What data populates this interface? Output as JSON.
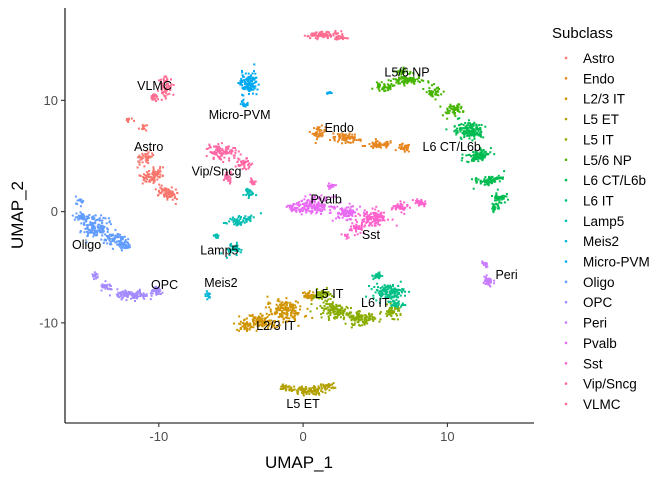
{
  "chart_data": {
    "type": "scatter",
    "xlabel": "UMAP_1",
    "ylabel": "UMAP_2",
    "xlim": [
      -16.5,
      16
    ],
    "ylim": [
      -19,
      18.3
    ],
    "x_ticks": [
      -10,
      0,
      10
    ],
    "y_ticks": [
      -10,
      0,
      10
    ],
    "grid": false,
    "legend": {
      "title": "Subclass",
      "position": "right"
    },
    "series": [
      {
        "name": "Astro",
        "color": "#F8766D",
        "label": "Astro",
        "label_pos": [
          -10.7,
          5.8
        ],
        "clusters": [
          [
            -10.9,
            4.8,
            0.45,
            0.7,
            40,
            -30
          ],
          [
            -10.5,
            3.2,
            0.5,
            0.8,
            80,
            -55
          ],
          [
            -9.4,
            1.7,
            0.7,
            0.45,
            90,
            -35
          ],
          [
            -11.1,
            7.6,
            0.25,
            0.35,
            12,
            0
          ],
          [
            -12.1,
            8.2,
            0.25,
            0.3,
            10,
            0
          ]
        ]
      },
      {
        "name": "Endo",
        "color": "#E7851E",
        "label": "Endo",
        "label_pos": [
          2.5,
          7.5
        ],
        "clusters": [
          [
            1.1,
            7.1,
            0.4,
            0.5,
            40,
            0
          ],
          [
            3.0,
            6.6,
            1.0,
            0.35,
            70,
            -10
          ],
          [
            5.3,
            6.0,
            0.9,
            0.3,
            60,
            5
          ],
          [
            7.0,
            5.7,
            0.4,
            0.35,
            30,
            0
          ]
        ]
      },
      {
        "name": "L2/3 IT",
        "color": "#D09400",
        "label": "L2/3 IT",
        "label_pos": [
          -1.9,
          -10.3
        ],
        "clusters": [
          [
            -1.2,
            -8.9,
            1.1,
            0.8,
            160,
            -30
          ],
          [
            -2.9,
            -9.9,
            1.0,
            0.55,
            120,
            -15
          ],
          [
            -4.0,
            -10.3,
            0.55,
            0.4,
            40,
            0
          ],
          [
            0.3,
            -7.6,
            0.45,
            0.35,
            30,
            0
          ]
        ]
      },
      {
        "name": "L5 ET",
        "color": "#B2A100",
        "label": "L5 ET",
        "label_pos": [
          0.0,
          -17.3
        ],
        "clusters": [
          [
            0.3,
            -16.1,
            1.0,
            0.35,
            110,
            0
          ],
          [
            -1.2,
            -15.8,
            0.4,
            0.3,
            25,
            0
          ],
          [
            1.7,
            -15.7,
            0.45,
            0.25,
            30,
            0
          ]
        ]
      },
      {
        "name": "L5 IT",
        "color": "#89AC00",
        "label": "L5 IT",
        "label_pos": [
          1.8,
          -7.4
        ],
        "clusters": [
          [
            2.3,
            -8.9,
            1.1,
            0.55,
            130,
            -15
          ],
          [
            4.0,
            -9.6,
            0.9,
            0.5,
            100,
            0
          ],
          [
            1.3,
            -7.5,
            0.55,
            0.45,
            50,
            0
          ],
          [
            6.2,
            -9.0,
            0.6,
            0.5,
            50,
            0
          ]
        ]
      },
      {
        "name": "L5/6 NP",
        "color": "#45B500",
        "label": "L5/6 NP",
        "label_pos": [
          7.2,
          12.5
        ],
        "clusters": [
          [
            7.2,
            11.8,
            0.9,
            0.4,
            90,
            0
          ],
          [
            5.6,
            11.2,
            0.6,
            0.3,
            40,
            0
          ],
          [
            9.1,
            10.8,
            0.5,
            0.5,
            40,
            -40
          ],
          [
            10.4,
            9.2,
            0.5,
            0.7,
            50,
            -55
          ],
          [
            6.8,
            12.6,
            0.4,
            0.3,
            25,
            0
          ]
        ]
      },
      {
        "name": "L6 CT/L6b",
        "color": "#00BC51",
        "label": "L6 CT/L6b",
        "label_pos": [
          10.3,
          5.8
        ],
        "clusters": [
          [
            11.5,
            7.3,
            0.8,
            0.7,
            150,
            -25
          ],
          [
            12.2,
            5.0,
            0.45,
            0.9,
            90,
            -75
          ],
          [
            12.9,
            2.8,
            0.35,
            1.0,
            80,
            -80
          ],
          [
            13.6,
            1.3,
            0.4,
            0.5,
            40,
            0
          ],
          [
            13.3,
            0.4,
            0.3,
            0.3,
            20,
            0
          ]
        ]
      },
      {
        "name": "L6 IT",
        "color": "#00C087",
        "label": "L6 IT",
        "label_pos": [
          5.0,
          -8.2
        ],
        "clusters": [
          [
            5.9,
            -7.2,
            1.0,
            0.6,
            130,
            0
          ],
          [
            5.2,
            -5.8,
            0.3,
            0.3,
            25,
            0
          ],
          [
            6.4,
            -8.3,
            0.5,
            0.3,
            30,
            0
          ]
        ]
      },
      {
        "name": "Lamp5",
        "color": "#00BDB2",
        "label": "Lamp5",
        "label_pos": [
          -5.8,
          -3.5
        ],
        "clusters": [
          [
            -4.4,
            -0.8,
            0.35,
            0.8,
            60,
            -80
          ],
          [
            -4.8,
            -3.3,
            0.4,
            0.6,
            50,
            -60
          ],
          [
            -3.8,
            1.7,
            0.3,
            0.4,
            25,
            0
          ],
          [
            -6.0,
            -2.2,
            0.25,
            0.25,
            12,
            0
          ]
        ]
      },
      {
        "name": "Meis2",
        "color": "#00B5D6",
        "label": "Meis2",
        "label_pos": [
          -5.7,
          -6.4
        ],
        "clusters": [
          [
            -6.6,
            -7.5,
            0.2,
            0.3,
            15,
            0
          ]
        ]
      },
      {
        "name": "Micro-PVM",
        "color": "#00A9F0",
        "label": "Micro-PVM",
        "label_pos": [
          -4.4,
          8.7
        ],
        "clusters": [
          [
            -3.8,
            11.5,
            0.55,
            0.9,
            120,
            -10
          ],
          [
            1.8,
            10.7,
            0.15,
            0.2,
            10,
            0
          ],
          [
            -4.1,
            9.7,
            0.3,
            0.3,
            20,
            0
          ]
        ]
      },
      {
        "name": "Oligo",
        "color": "#619CFF",
        "label": "Oligo",
        "label_pos": [
          -15.0,
          -3.0
        ],
        "clusters": [
          [
            -14.3,
            -1.4,
            0.9,
            0.9,
            130,
            -30
          ],
          [
            -13.1,
            -2.4,
            0.7,
            0.55,
            80,
            -20
          ],
          [
            -15.3,
            -0.5,
            0.5,
            0.45,
            40,
            0
          ],
          [
            -12.3,
            -3.1,
            0.4,
            0.3,
            30,
            0
          ],
          [
            -15.5,
            1.0,
            0.3,
            0.3,
            12,
            0
          ]
        ]
      },
      {
        "name": "OPC",
        "color": "#A58AFF",
        "label": "OPC",
        "label_pos": [
          -9.6,
          -6.6
        ],
        "clusters": [
          [
            -11.8,
            -7.5,
            1.0,
            0.35,
            110,
            -5
          ],
          [
            -10.1,
            -7.2,
            0.4,
            0.3,
            35,
            0
          ],
          [
            -13.6,
            -6.8,
            0.4,
            0.3,
            30,
            0
          ],
          [
            -14.4,
            -5.8,
            0.2,
            0.35,
            15,
            0
          ]
        ]
      },
      {
        "name": "Peri",
        "color": "#C77CFF",
        "label": "Peri",
        "label_pos": [
          14.1,
          -5.7
        ],
        "clusters": [
          [
            12.8,
            -6.3,
            0.35,
            0.4,
            45,
            0
          ],
          [
            12.6,
            -4.7,
            0.2,
            0.3,
            15,
            0
          ]
        ]
      },
      {
        "name": "Pvalb",
        "color": "#E86BF3",
        "label": "Pvalb",
        "label_pos": [
          1.6,
          1.1
        ],
        "clusters": [
          [
            0.8,
            0.6,
            1.1,
            0.65,
            160,
            0
          ],
          [
            3.0,
            -0.1,
            0.8,
            0.5,
            80,
            10
          ],
          [
            -0.5,
            0.3,
            0.5,
            0.5,
            40,
            0
          ],
          [
            1.9,
            2.3,
            0.3,
            0.25,
            20,
            0
          ]
        ]
      },
      {
        "name": "Sst",
        "color": "#FF61CC",
        "label": "Sst",
        "label_pos": [
          4.7,
          -2.1
        ],
        "clusters": [
          [
            4.9,
            -0.6,
            0.9,
            0.7,
            120,
            20
          ],
          [
            3.7,
            -1.5,
            0.5,
            0.4,
            40,
            0
          ],
          [
            6.7,
            0.4,
            0.5,
            0.35,
            40,
            0
          ],
          [
            8.1,
            0.8,
            0.4,
            0.35,
            30,
            0
          ],
          [
            2.9,
            -2.2,
            0.2,
            0.2,
            10,
            0
          ]
        ]
      },
      {
        "name": "Vip/Sncg",
        "color": "#FF67A4",
        "label": "Vip/Sncg",
        "label_pos": [
          -6.0,
          3.6
        ],
        "clusters": [
          [
            -5.6,
            5.3,
            0.9,
            0.6,
            100,
            -15
          ],
          [
            -4.1,
            4.3,
            0.5,
            0.4,
            40,
            0
          ],
          [
            -5.2,
            3.1,
            0.3,
            0.45,
            30,
            0
          ],
          [
            -3.5,
            2.7,
            0.2,
            0.3,
            15,
            0
          ]
        ]
      },
      {
        "name": "VLMC",
        "color": "#FF6C91",
        "label": "VLMC",
        "label_pos": [
          -10.3,
          11.3
        ],
        "clusters": [
          [
            -9.5,
            11.2,
            0.4,
            0.9,
            60,
            0
          ],
          [
            -10.3,
            10.3,
            0.3,
            0.3,
            20,
            0
          ],
          [
            1.3,
            15.9,
            1.0,
            0.25,
            80,
            5
          ],
          [
            2.6,
            15.7,
            0.4,
            0.25,
            25,
            0
          ]
        ]
      }
    ]
  }
}
